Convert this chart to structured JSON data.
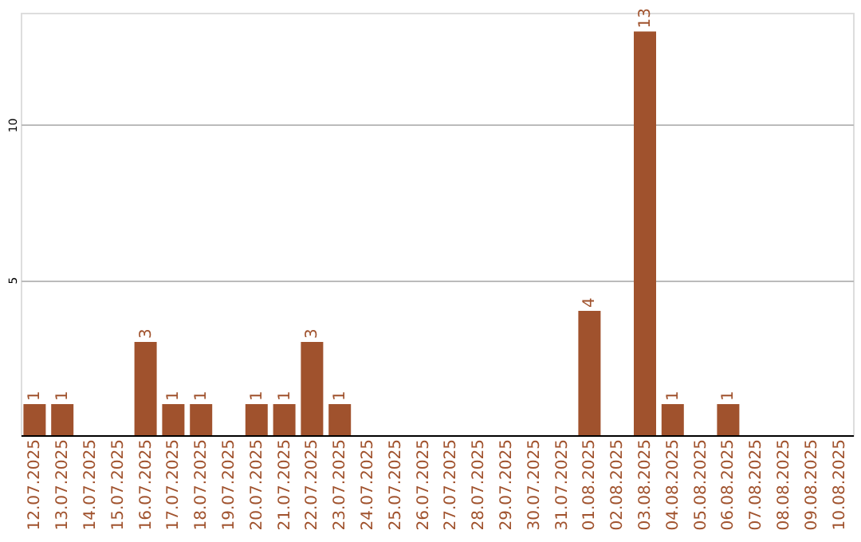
{
  "chart_data": {
    "type": "bar",
    "categories": [
      "12.07.2025",
      "13.07.2025",
      "14.07.2025",
      "15.07.2025",
      "16.07.2025",
      "17.07.2025",
      "18.07.2025",
      "19.07.2025",
      "20.07.2025",
      "21.07.2025",
      "22.07.2025",
      "23.07.2025",
      "24.07.2025",
      "25.07.2025",
      "26.07.2025",
      "27.07.2025",
      "28.07.2025",
      "29.07.2025",
      "30.07.2025",
      "31.07.2025",
      "01.08.2025",
      "02.08.2025",
      "03.08.2025",
      "04.08.2025",
      "05.08.2025",
      "06.08.2025",
      "07.08.2025",
      "08.08.2025",
      "09.08.2025",
      "10.08.2025"
    ],
    "values": [
      1,
      1,
      0,
      0,
      3,
      1,
      1,
      0,
      1,
      1,
      3,
      1,
      0,
      0,
      0,
      0,
      0,
      0,
      0,
      0,
      4,
      0,
      13,
      1,
      0,
      1,
      0,
      0,
      0,
      0
    ],
    "value_labels": [
      "1",
      "1",
      null,
      null,
      "3",
      "1",
      "1",
      null,
      "1",
      "1",
      "3",
      "1",
      null,
      null,
      null,
      null,
      null,
      null,
      null,
      null,
      "4",
      null,
      "13",
      "1",
      null,
      "1",
      null,
      null,
      null,
      null
    ],
    "color": "#a0522d",
    "ylim": [
      0,
      13.6
    ],
    "yticks": [
      5,
      10
    ],
    "grid": "y"
  }
}
